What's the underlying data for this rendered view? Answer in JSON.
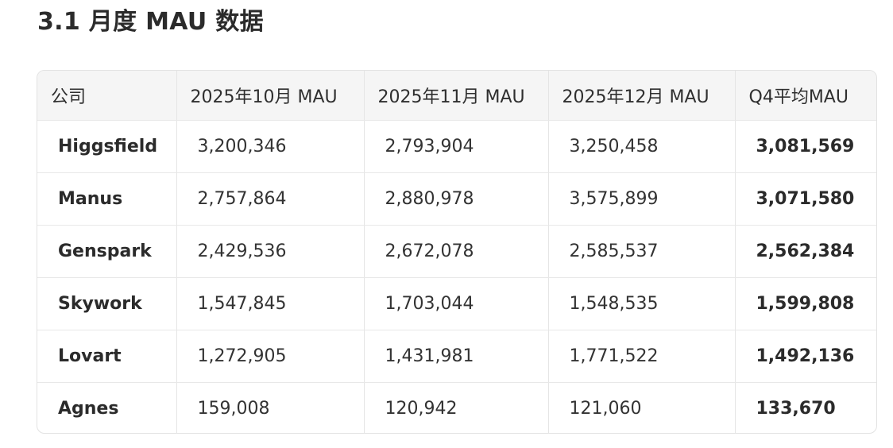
{
  "section_title": "3.1 月度 MAU 数据",
  "table": {
    "headers": [
      "公司",
      "2025年10月 MAU",
      "2025年11月 MAU",
      "2025年12月 MAU",
      "Q4平均MAU"
    ],
    "rows": [
      {
        "company": "Higgsfield",
        "oct": "3,200,346",
        "nov": "2,793,904",
        "dec": "3,250,458",
        "avg": "3,081,569"
      },
      {
        "company": "Manus",
        "oct": "2,757,864",
        "nov": "2,880,978",
        "dec": "3,575,899",
        "avg": "3,071,580"
      },
      {
        "company": "Genspark",
        "oct": "2,429,536",
        "nov": "2,672,078",
        "dec": "2,585,537",
        "avg": "2,562,384"
      },
      {
        "company": "Skywork",
        "oct": "1,547,845",
        "nov": "1,703,044",
        "dec": "1,548,535",
        "avg": "1,599,808"
      },
      {
        "company": "Lovart",
        "oct": "1,272,905",
        "nov": "1,431,981",
        "dec": "1,771,522",
        "avg": "1,492,136"
      },
      {
        "company": "Agnes",
        "oct": "159,008",
        "nov": "120,942",
        "dec": "121,060",
        "avg": "133,670"
      }
    ]
  }
}
